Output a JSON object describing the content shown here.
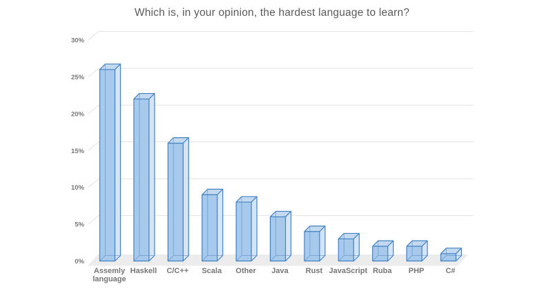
{
  "title": "Which is, in your opinion, the hardest language to learn?",
  "chart_data": {
    "type": "bar",
    "style": "3d-column",
    "title": "Which is, in your opinion, the hardest language to learn?",
    "categories": [
      "Assemly language",
      "Haskell",
      "C/C++",
      "Scala",
      "Other",
      "Java",
      "Rust",
      "JavaScript",
      "Ruba",
      "PHP",
      "C#"
    ],
    "values": [
      26,
      22,
      16,
      9,
      8,
      6,
      4,
      3,
      2,
      2,
      1
    ],
    "unit": "%",
    "xlabel": "",
    "ylabel": "",
    "ylim": [
      0,
      30
    ],
    "ytick_step": 5,
    "ytick_labels": [
      "0%",
      "5%",
      "10%",
      "15%",
      "20%",
      "25%",
      "30%"
    ],
    "grid": true,
    "legend": false,
    "colors": {
      "bar_front": "#A6C9EC",
      "bar_side": "#D6E5F5",
      "bar_top": "#C3D9F0",
      "bar_edge": "#4181C1",
      "bar_hidden_edge": "rgba(85,135,195,0.55)",
      "floor": "#ECECEC",
      "gridline": "#E2E2E2",
      "title_text": "#595959",
      "axis_text": "#767676"
    }
  }
}
